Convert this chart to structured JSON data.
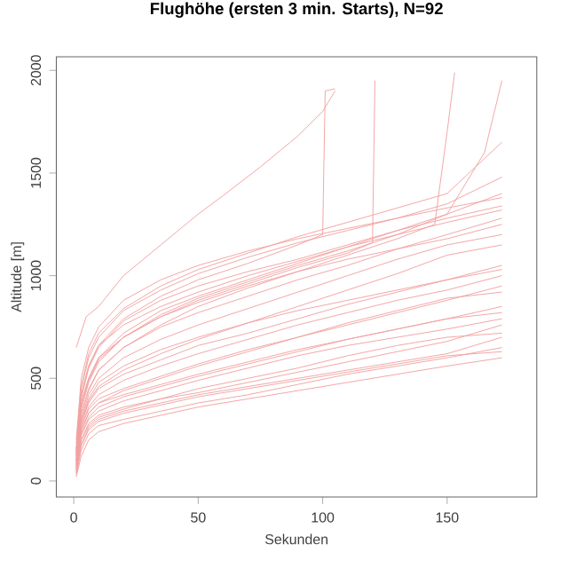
{
  "chart_data": {
    "type": "line",
    "title": "Flughöhe (ersten 3 min. Starts), N=92",
    "xlabel": "Sekunden",
    "ylabel": "Altitude [m]",
    "xlim": [
      -7,
      186
    ],
    "ylim": [
      -78,
      2066
    ],
    "xticks": [
      0,
      50,
      100,
      150
    ],
    "yticks": [
      0,
      500,
      1000,
      1500,
      2000
    ],
    "grid": false,
    "marker": "none",
    "line_style": "solid",
    "color": "#f2a0a0",
    "x": [
      1,
      3,
      6,
      10,
      20,
      35,
      50,
      70,
      90,
      110,
      130,
      150,
      172
    ],
    "series": [
      {
        "values": [
          50,
          200,
          280,
          320,
          360,
          400,
          430,
          480,
          530,
          580,
          630,
          680,
          760
        ]
      },
      {
        "values": [
          30,
          150,
          230,
          270,
          300,
          340,
          380,
          420,
          470,
          520,
          560,
          600,
          650
        ]
      },
      {
        "values": [
          80,
          250,
          330,
          380,
          420,
          470,
          520,
          580,
          640,
          690,
          740,
          790,
          850
        ]
      },
      {
        "values": [
          100,
          300,
          400,
          480,
          560,
          640,
          700,
          770,
          830,
          880,
          930,
          980,
          1050
        ]
      },
      {
        "values": [
          120,
          350,
          480,
          580,
          700,
          800,
          870,
          950,
          1020,
          1080,
          1130,
          1180,
          1250
        ]
      },
      {
        "values": [
          60,
          220,
          300,
          340,
          390,
          440,
          490,
          550,
          610,
          660,
          700,
          740,
          790
        ]
      },
      {
        "values": [
          90,
          280,
          380,
          450,
          520,
          590,
          660,
          720,
          790,
          860,
          920,
          980,
          1030
        ]
      },
      {
        "values": [
          150,
          400,
          550,
          650,
          780,
          880,
          950,
          1020,
          1080,
          1150,
          1220,
          1280,
          1340
        ]
      },
      {
        "values": [
          40,
          180,
          260,
          300,
          340,
          380,
          420,
          460,
          500,
          540,
          580,
          620,
          700
        ]
      },
      {
        "values": [
          70,
          260,
          350,
          400,
          450,
          510,
          570,
          640,
          700,
          760,
          820,
          880,
          950
        ]
      },
      {
        "values": [
          110,
          320,
          440,
          540,
          650,
          750,
          820,
          900,
          980,
          1050,
          1130,
          1200,
          1280
        ]
      },
      {
        "values": [
          200,
          500,
          650,
          750,
          880,
          980,
          1050,
          1120,
          1180,
          1230,
          1280,
          1330,
          1380
        ]
      },
      {
        "values": [
          50,
          230,
          310,
          360,
          410,
          460,
          510,
          570,
          630,
          690,
          740,
          790,
          820
        ]
      },
      {
        "values": [
          80,
          270,
          360,
          420,
          490,
          560,
          620,
          690,
          760,
          820,
          880,
          930,
          1000
        ]
      },
      {
        "values": [
          130,
          380,
          500,
          600,
          720,
          830,
          900,
          980,
          1060,
          1140,
          1220,
          1300,
          1400
        ]
      },
      {
        "values": [
          60,
          200,
          270,
          310,
          350,
          400,
          450,
          500,
          550,
          610,
          660,
          700,
          720
        ]
      },
      {
        "values": [
          90,
          300,
          420,
          500,
          600,
          690,
          760,
          840,
          920,
          1000,
          1080,
          1150,
          1200
        ]
      },
      {
        "values": [
          20,
          120,
          200,
          240,
          280,
          320,
          360,
          400,
          440,
          480,
          520,
          560,
          600
        ]
      },
      {
        "values": [
          100,
          290,
          390,
          460,
          540,
          620,
          690,
          770,
          850,
          930,
          1010,
          1100,
          1150
        ]
      },
      {
        "values": [
          180,
          450,
          600,
          700,
          830,
          930,
          1010,
          1090,
          1160,
          1220,
          1280,
          1350,
          1480
        ]
      },
      {
        "values": [
          70,
          240,
          330,
          380,
          440,
          500,
          560,
          630,
          700,
          770,
          830,
          890,
          920
        ]
      },
      {
        "values": [
          140,
          420,
          560,
          660,
          760,
          850,
          920,
          1000,
          1070,
          1140,
          1200,
          1260,
          1320
        ]
      },
      {
        "values": [
          40,
          170,
          250,
          290,
          330,
          370,
          410,
          450,
          490,
          530,
          570,
          610,
          630
        ]
      },
      {
        "values": [
          160,
          460,
          620,
          720,
          840,
          950,
          1030,
          1110,
          1190,
          1260,
          1330,
          1400,
          1650
        ]
      },
      {
        "x": [
          1,
          5,
          10,
          20,
          35,
          50,
          60,
          75,
          90,
          100,
          105
        ],
        "values": [
          650,
          800,
          850,
          1000,
          1150,
          1300,
          1390,
          1530,
          1680,
          1800,
          1900
        ]
      },
      {
        "x": [
          1,
          3,
          6,
          10,
          20,
          35,
          50,
          70,
          90,
          100,
          101,
          105
        ],
        "values": [
          150,
          420,
          560,
          660,
          790,
          900,
          980,
          1060,
          1150,
          1200,
          1900,
          1910
        ]
      },
      {
        "x": [
          1,
          3,
          6,
          10,
          20,
          35,
          50,
          70,
          90,
          110,
          120,
          121
        ],
        "values": [
          120,
          380,
          500,
          600,
          700,
          800,
          880,
          960,
          1040,
          1110,
          1160,
          1950
        ]
      },
      {
        "x": [
          1,
          3,
          6,
          10,
          20,
          35,
          50,
          70,
          90,
          110,
          130,
          145,
          150,
          153
        ],
        "values": [
          100,
          330,
          450,
          540,
          650,
          760,
          850,
          940,
          1020,
          1100,
          1180,
          1250,
          1700,
          1990
        ]
      },
      {
        "x": [
          1,
          3,
          6,
          10,
          20,
          35,
          50,
          70,
          90,
          110,
          130,
          150,
          165,
          172
        ],
        "values": [
          130,
          360,
          490,
          590,
          700,
          810,
          890,
          970,
          1050,
          1120,
          1200,
          1300,
          1600,
          1950
        ]
      }
    ]
  }
}
